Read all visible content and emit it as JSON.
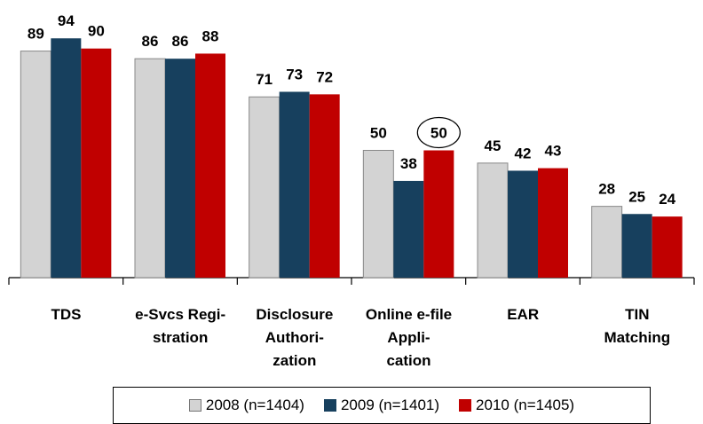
{
  "chart_data": {
    "type": "bar",
    "categories": [
      "TDS",
      "e-Svcs Regi-\nstration",
      "Disclosure\nAuthori-\nzation",
      "Online e-file\nAppli-\ncation",
      "EAR",
      "TIN\nMatching"
    ],
    "series": [
      {
        "name": "2008 (n=1404)",
        "color": "#d3d3d3",
        "values": [
          89,
          86,
          71,
          50,
          45,
          28
        ]
      },
      {
        "name": "2009 (n=1401)",
        "color": "#17405e",
        "values": [
          94,
          86,
          73,
          38,
          42,
          25
        ]
      },
      {
        "name": "2010 (n=1405)",
        "color": "#c00000",
        "values": [
          90,
          88,
          72,
          50,
          43,
          24
        ]
      }
    ]
  }
}
